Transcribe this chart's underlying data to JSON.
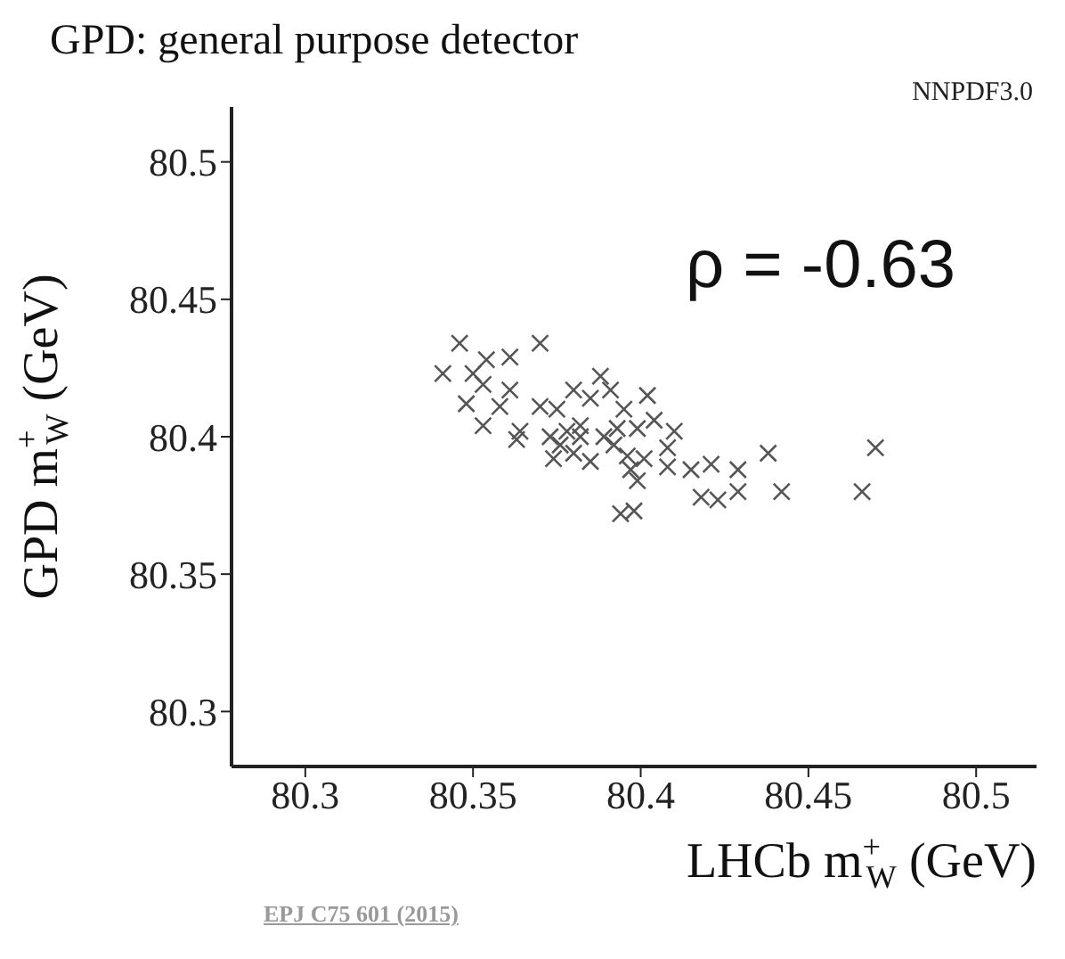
{
  "chart_data": {
    "type": "scatter",
    "title": "GPD: general purpose detector",
    "subtitle": "NNPDF3.0",
    "xlabel": "LHCb m$^{+}$$_{W}$ (GeV)",
    "ylabel": "GPD m$^{+}$$_{W}$ (GeV)",
    "annotations": [
      "ρ = -0.63",
      "EPJ C75 601 (2015)"
    ],
    "xlim": [
      80.278,
      80.518
    ],
    "ylim": [
      80.28,
      80.52
    ],
    "xticks": [
      80.3,
      80.35,
      80.4,
      80.45,
      80.5
    ],
    "yticks": [
      80.3,
      80.35,
      80.4,
      80.45,
      80.5
    ],
    "grid": false,
    "legend": false,
    "marker": "cross",
    "series": [
      {
        "color": "#555555",
        "x": [
          80.346,
          80.37,
          80.361,
          80.354,
          80.341,
          80.35,
          80.353,
          80.361,
          80.348,
          80.358,
          80.353,
          80.364,
          80.363,
          80.37,
          80.375,
          80.38,
          80.388,
          80.385,
          80.391,
          80.402,
          80.395,
          80.404,
          80.399,
          80.41,
          80.373,
          80.376,
          80.382,
          80.389,
          80.392,
          80.374,
          80.38,
          80.385,
          80.396,
          80.401,
          80.408,
          80.408,
          80.397,
          80.399,
          80.415,
          80.421,
          80.429,
          80.438,
          80.47,
          80.418,
          80.423,
          80.429,
          80.442,
          80.466,
          80.394,
          80.398,
          80.382,
          80.378,
          80.393
        ],
        "values": [
          80.434,
          80.434,
          80.429,
          80.428,
          80.423,
          80.423,
          80.419,
          80.417,
          80.412,
          80.411,
          80.404,
          80.402,
          80.399,
          80.411,
          80.41,
          80.417,
          80.422,
          80.414,
          80.417,
          80.415,
          80.41,
          80.406,
          80.403,
          80.402,
          80.4,
          80.397,
          80.4,
          80.4,
          80.397,
          80.392,
          80.394,
          80.391,
          80.393,
          80.392,
          80.396,
          80.389,
          80.388,
          80.384,
          80.388,
          80.39,
          80.388,
          80.394,
          80.396,
          80.378,
          80.377,
          80.38,
          80.38,
          80.38,
          80.372,
          80.373,
          80.404,
          80.402,
          80.403
        ]
      }
    ]
  }
}
